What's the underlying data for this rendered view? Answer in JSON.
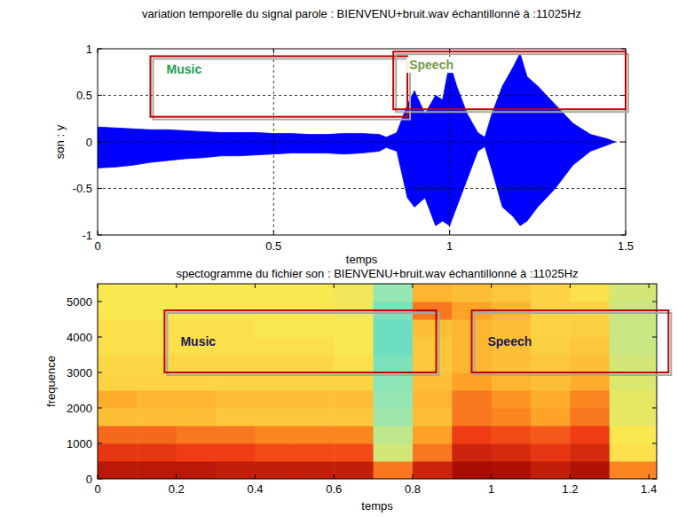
{
  "chart_data": [
    {
      "type": "area",
      "title": "variation temporelle du signal parole : BIENVENU+bruit.wav  échantillonné à :11025Hz",
      "xlabel": "temps",
      "ylabel": "son : y",
      "x": [
        0,
        0.05,
        0.1,
        0.15,
        0.2,
        0.25,
        0.3,
        0.35,
        0.4,
        0.45,
        0.5,
        0.55,
        0.6,
        0.65,
        0.7,
        0.75,
        0.8,
        0.82,
        0.85,
        0.88,
        0.9,
        0.93,
        0.96,
        0.98,
        1.0,
        1.02,
        1.05,
        1.08,
        1.1,
        1.12,
        1.15,
        1.18,
        1.2,
        1.22,
        1.25,
        1.3,
        1.35,
        1.4,
        1.45,
        1.47
      ],
      "series": [
        {
          "color": "#0000ff",
          "values": [
            0.16,
            0.15,
            0.14,
            0.13,
            0.13,
            0.12,
            0.11,
            0.1,
            0.1,
            0.1,
            0.09,
            0.09,
            0.08,
            0.08,
            0.09,
            0.09,
            0.08,
            0.05,
            0.1,
            0.4,
            0.55,
            0.3,
            0.5,
            0.45,
            0.85,
            0.6,
            0.3,
            0.1,
            0.05,
            0.3,
            0.6,
            0.8,
            0.95,
            0.7,
            0.6,
            0.4,
            0.2,
            0.08,
            0.03,
            0
          ]
        },
        {
          "color": "#0000ff",
          "values": [
            -0.28,
            -0.27,
            -0.25,
            -0.22,
            -0.2,
            -0.18,
            -0.17,
            -0.15,
            -0.15,
            -0.14,
            -0.13,
            -0.12,
            -0.12,
            -0.12,
            -0.13,
            -0.12,
            -0.1,
            -0.06,
            -0.1,
            -0.6,
            -0.7,
            -0.6,
            -0.9,
            -0.85,
            -0.9,
            -0.7,
            -0.4,
            -0.1,
            -0.05,
            -0.3,
            -0.7,
            -0.8,
            -0.9,
            -0.85,
            -0.7,
            -0.5,
            -0.25,
            -0.1,
            -0.03,
            0
          ]
        }
      ],
      "xlim": [
        0,
        1.5
      ],
      "ylim": [
        -1,
        1
      ],
      "xticks": [
        0,
        0.5,
        1,
        1.5
      ],
      "yticks": [
        -1,
        -0.5,
        0,
        0.5,
        1
      ],
      "grid": true,
      "annotations": [
        {
          "text": "Music",
          "color": "#1e9e50",
          "x_range": [
            0.15,
            0.88
          ],
          "y_range": [
            0.27,
            0.92
          ]
        },
        {
          "text": "Speech",
          "color": "#7a9a4a",
          "x_range": [
            0.84,
            1.5
          ],
          "y_range": [
            0.35,
            0.97
          ]
        }
      ]
    },
    {
      "type": "heatmap",
      "title": "spectogramme du fichier son : BIENVENU+bruit.wav  échantillonné à :11025Hz",
      "xlabel": "temps",
      "ylabel": "frequence",
      "x_edges": [
        0,
        0.1,
        0.2,
        0.3,
        0.4,
        0.5,
        0.6,
        0.7,
        0.8,
        0.9,
        1.0,
        1.1,
        1.2,
        1.3,
        1.42
      ],
      "y_edges": [
        0,
        500,
        1000,
        1500,
        2000,
        2500,
        3000,
        3500,
        4000,
        4500,
        5000,
        5500
      ],
      "cells": [
        [
          0.92,
          0.92,
          0.92,
          0.9,
          0.9,
          0.9,
          0.9,
          0.72,
          0.88,
          0.96,
          0.95,
          0.9,
          0.94,
          0.7
        ],
        [
          0.82,
          0.82,
          0.8,
          0.8,
          0.78,
          0.78,
          0.78,
          0.42,
          0.72,
          0.88,
          0.86,
          0.82,
          0.86,
          0.52
        ],
        [
          0.74,
          0.74,
          0.72,
          0.72,
          0.7,
          0.7,
          0.7,
          0.38,
          0.66,
          0.8,
          0.78,
          0.76,
          0.8,
          0.5
        ],
        [
          0.6,
          0.6,
          0.6,
          0.58,
          0.58,
          0.58,
          0.58,
          0.32,
          0.6,
          0.72,
          0.7,
          0.66,
          0.72,
          0.46
        ],
        [
          0.64,
          0.62,
          0.62,
          0.6,
          0.6,
          0.6,
          0.6,
          0.3,
          0.62,
          0.72,
          0.68,
          0.64,
          0.7,
          0.46
        ],
        [
          0.55,
          0.55,
          0.55,
          0.55,
          0.55,
          0.55,
          0.55,
          0.28,
          0.6,
          0.66,
          0.62,
          0.6,
          0.64,
          0.44
        ],
        [
          0.54,
          0.54,
          0.54,
          0.54,
          0.54,
          0.54,
          0.52,
          0.25,
          0.58,
          0.62,
          0.6,
          0.58,
          0.6,
          0.42
        ],
        [
          0.52,
          0.52,
          0.52,
          0.52,
          0.52,
          0.52,
          0.5,
          0.22,
          0.58,
          0.62,
          0.6,
          0.56,
          0.58,
          0.4
        ],
        [
          0.52,
          0.52,
          0.52,
          0.52,
          0.5,
          0.5,
          0.5,
          0.22,
          0.6,
          0.62,
          0.6,
          0.55,
          0.56,
          0.4
        ],
        [
          0.5,
          0.5,
          0.5,
          0.5,
          0.5,
          0.5,
          0.48,
          0.25,
          0.72,
          0.66,
          0.62,
          0.55,
          0.55,
          0.4
        ],
        [
          0.5,
          0.5,
          0.5,
          0.5,
          0.5,
          0.5,
          0.48,
          0.3,
          0.62,
          0.6,
          0.58,
          0.55,
          0.52,
          0.42
        ]
      ],
      "clim": [
        0,
        1
      ],
      "xlim": [
        0,
        1.42
      ],
      "ylim": [
        0,
        5500
      ],
      "xticks": [
        0,
        0.2,
        0.4,
        0.6,
        0.8,
        1,
        1.2,
        1.4
      ],
      "yticks": [
        0,
        1000,
        2000,
        3000,
        4000,
        5000
      ],
      "grid": false,
      "annotations": [
        {
          "text": "Music",
          "color": "#1a1a50",
          "x_range": [
            0.17,
            0.86
          ],
          "y_range": [
            3000,
            4750
          ]
        },
        {
          "text": "Speech",
          "color": "#1a1a50",
          "x_range": [
            0.95,
            1.45
          ],
          "y_range": [
            3000,
            4750
          ]
        }
      ]
    }
  ]
}
